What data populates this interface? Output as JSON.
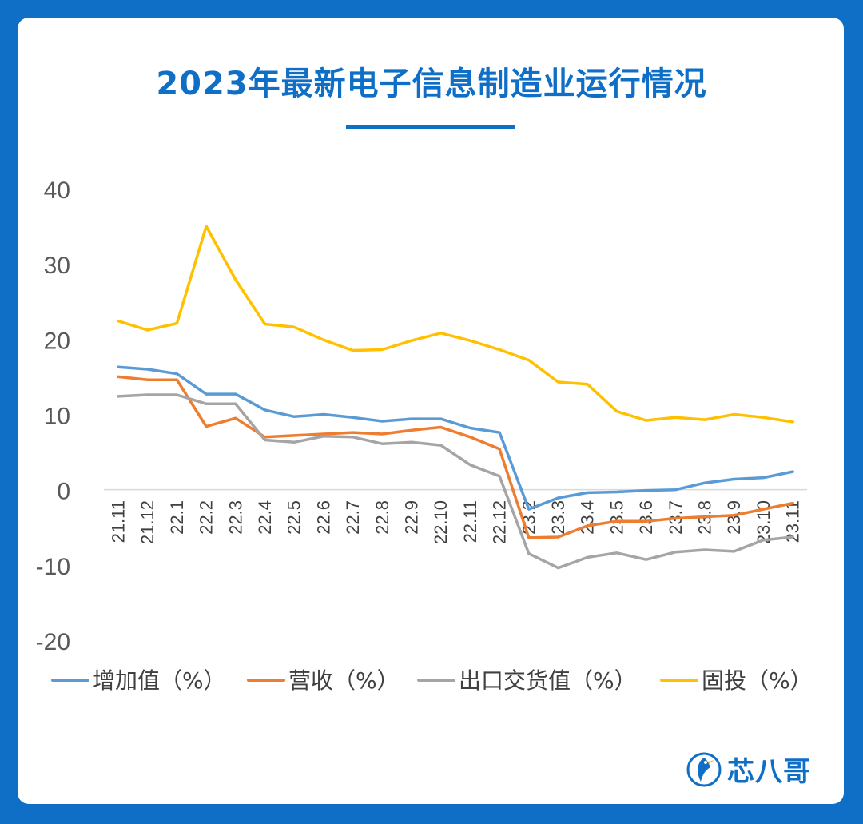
{
  "title": "2023年最新电子信息制造业运行情况",
  "brand": {
    "name": "芯八哥"
  },
  "colors": {
    "background": "#0f6fc6",
    "title": "#0f6fc6"
  },
  "chart_data": {
    "type": "line",
    "title": "2023年最新电子信息制造业运行情况",
    "xlabel": "",
    "ylabel": "",
    "ylim": [
      -20,
      40
    ],
    "yticks": [
      40,
      30,
      20,
      10,
      0,
      -10,
      -20
    ],
    "grid": false,
    "legend_position": "bottom",
    "categories": [
      "21.11",
      "21.12",
      "22.1",
      "22.2",
      "22.3",
      "22.4",
      "22.5",
      "22.6",
      "22.7",
      "22.8",
      "22.9",
      "22.10",
      "22.11",
      "22.12",
      "23.2",
      "23.3",
      "23.4",
      "23.5",
      "23.6",
      "23.7",
      "23.8",
      "23.9",
      "23.10",
      "23.11"
    ],
    "series": [
      {
        "name": "增加值（%）",
        "color": "#5b9bd5",
        "values": [
          16.3,
          16.0,
          15.4,
          12.7,
          12.7,
          10.6,
          9.7,
          10.0,
          9.6,
          9.1,
          9.4,
          9.4,
          8.2,
          7.6,
          -2.6,
          -1.1,
          -0.4,
          -0.3,
          -0.1,
          0.0,
          0.9,
          1.4,
          1.6,
          2.4
        ]
      },
      {
        "name": "营收（%）",
        "color": "#ed7d31",
        "values": [
          15.0,
          14.6,
          14.6,
          8.4,
          9.5,
          7.0,
          7.2,
          7.4,
          7.6,
          7.4,
          7.9,
          8.3,
          7.0,
          5.4,
          -6.4,
          -6.3,
          -4.8,
          -4.2,
          -4.2,
          -3.8,
          -3.6,
          -3.4,
          -2.6,
          -1.8
        ]
      },
      {
        "name": "出口交货值（%）",
        "color": "#a5a5a5",
        "values": [
          12.4,
          12.6,
          12.6,
          11.4,
          11.4,
          6.6,
          6.3,
          7.1,
          7.0,
          6.1,
          6.3,
          5.9,
          3.3,
          1.8,
          -8.5,
          -10.4,
          -9.0,
          -8.4,
          -9.3,
          -8.3,
          -8.0,
          -8.2,
          -6.7,
          -6.3
        ]
      },
      {
        "name": "固投（%）",
        "color": "#ffc000",
        "values": [
          22.4,
          21.2,
          22.1,
          35.0,
          27.9,
          22.0,
          21.6,
          19.9,
          18.5,
          18.6,
          19.8,
          20.8,
          19.8,
          18.6,
          17.2,
          14.3,
          14.0,
          10.4,
          9.2,
          9.6,
          9.3,
          10.0,
          9.6,
          9.0
        ]
      }
    ]
  }
}
